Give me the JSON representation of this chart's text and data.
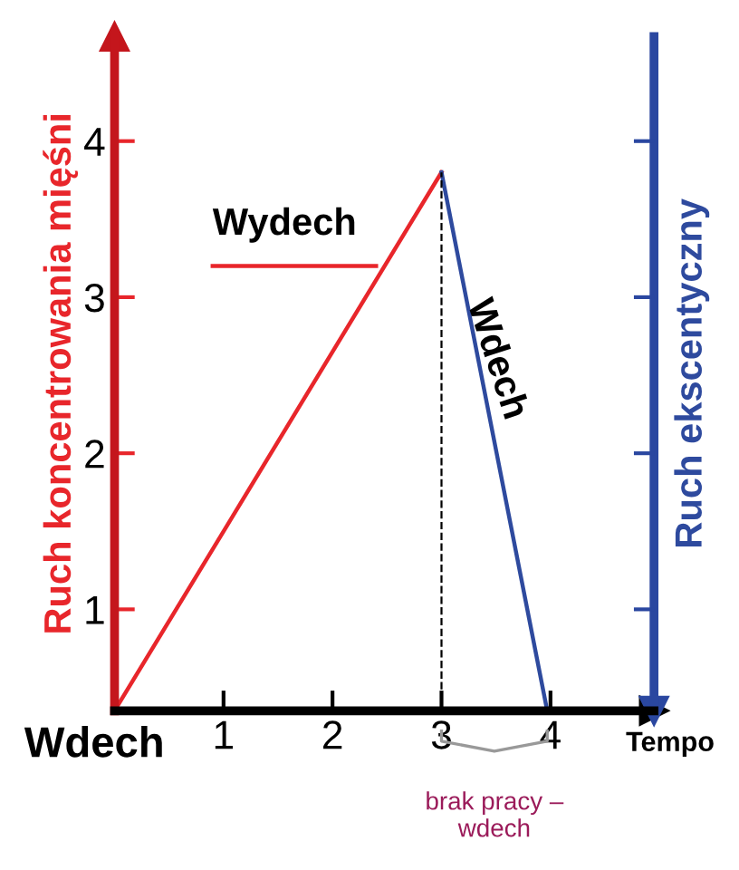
{
  "chart_data": {
    "type": "line",
    "xlabel": "Tempo",
    "ylabel": "Ruch koncentrowania mięśni",
    "y2label": "Ruch ekscentyczny",
    "series": [
      {
        "name": "Wydech",
        "color": "#e8262b",
        "x": [
          0,
          3
        ],
        "values": [
          0.35,
          3.8
        ]
      },
      {
        "name": "Wdech",
        "color": "#2e4a9e",
        "x": [
          3,
          3.97
        ],
        "values": [
          3.8,
          0.35
        ]
      }
    ],
    "xlim": [
      0,
      4.95
    ],
    "ylim": [
      0.35,
      4.67
    ],
    "xticks": [
      1,
      2,
      3,
      4
    ],
    "annotations": [
      {
        "text": "Wdech",
        "x": 0,
        "y": 0.35
      },
      "brak pracy –\nwdech"
    ],
    "yticks": [
      1,
      2,
      3,
      4
    ],
    "tick_labels": "xy",
    "ref_lines": [
      {
        "axis": "x",
        "value": 3,
        "line_style": "dashed",
        "color": "#000000"
      }
    ],
    "grid": false,
    "marker": "none",
    "line_style": "solid"
  }
}
